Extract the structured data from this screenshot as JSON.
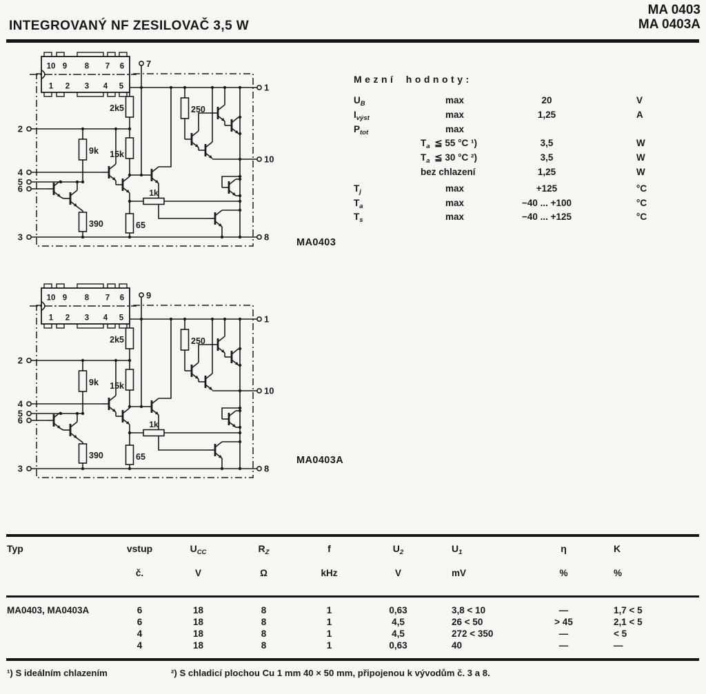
{
  "header": {
    "title": "INTEGROVANÝ NF ZESILOVAČ 3,5 W",
    "part_line1": "MA 0403",
    "part_line2": "MA 0403A"
  },
  "colors": {
    "ink": "#1a1a1a",
    "paper": "#f6f6f3"
  },
  "schematics": [
    {
      "caption": "MA0403",
      "top_pin": "7",
      "left_pins": [
        "2",
        "4",
        "5",
        "6",
        "3"
      ],
      "right_pins": [
        "1",
        "10",
        "8"
      ],
      "resistors": {
        "r2k5": "2k5",
        "r15k": "15k",
        "r9k": "9k",
        "r390": "390",
        "r65": "65",
        "r1k": "1k",
        "r250": "250"
      },
      "package_top_pins": [
        "10",
        "9",
        "8",
        "7",
        "6"
      ],
      "package_bottom_pins": [
        "1",
        "2",
        "3",
        "4",
        "5"
      ]
    },
    {
      "caption": "MA0403A",
      "top_pin": "9",
      "left_pins": [
        "2",
        "4",
        "5",
        "6",
        "3"
      ],
      "right_pins": [
        "1",
        "10",
        "8"
      ],
      "resistors": {
        "r2k5": "2k5",
        "r15k": "15k",
        "r9k": "9k",
        "r390": "390",
        "r65": "65",
        "r1k": "1k",
        "r250": "250"
      },
      "package_top_pins": [
        "10",
        "9",
        "8",
        "7",
        "6"
      ],
      "package_bottom_pins": [
        "1",
        "2",
        "3",
        "4",
        "5"
      ]
    }
  ],
  "limits": {
    "heading": "Mezní hodnoty:",
    "rows": [
      {
        "sym": "U",
        "sub": "B",
        "cond": "max",
        "cond_indent": true,
        "value": "20",
        "unit": "V"
      },
      {
        "sym": "I",
        "sub": "výst",
        "cond": "max",
        "cond_indent": true,
        "value": "1,25",
        "unit": "A"
      },
      {
        "sym": "P",
        "sub": "tot",
        "cond": "max",
        "cond_indent": true,
        "value": "",
        "unit": ""
      },
      {
        "sym": "",
        "sub": "",
        "cond_sym": "T",
        "cond_sub": "a",
        "cond": "≦ 55 °C ¹)",
        "value": "3,5",
        "unit": "W"
      },
      {
        "sym": "",
        "sub": "",
        "cond_sym": "T",
        "cond_sub": "a",
        "cond": "≦ 30 °C ²)",
        "value": "3,5",
        "unit": "W"
      },
      {
        "sym": "",
        "sub": "",
        "cond": "bez chlazení",
        "value": "1,25",
        "unit": "W"
      },
      {
        "sym": "T",
        "sub": "j",
        "cond": "max",
        "cond_indent": true,
        "value": "+125",
        "unit": "°C",
        "gap": true
      },
      {
        "sym": "T",
        "sub": "a",
        "cond": "max",
        "cond_indent": true,
        "value": "−40 ... +100",
        "unit": "°C"
      },
      {
        "sym": "T",
        "sub": "s",
        "cond": "max",
        "cond_indent": true,
        "value": "−40 ... +125",
        "unit": "°C"
      }
    ]
  },
  "table": {
    "headers": [
      {
        "m": "Typ",
        "ms": "",
        "u": ""
      },
      {
        "m": "vstup",
        "ms": "",
        "u": "č."
      },
      {
        "m": "U",
        "ms": "CC",
        "u": "V"
      },
      {
        "m": "R",
        "ms": "Z",
        "u": "Ω"
      },
      {
        "m": "f",
        "ms": "",
        "u": "kHz"
      },
      {
        "m": "U",
        "ms": "2",
        "u": "V"
      },
      {
        "m": "U",
        "ms": "1",
        "u": "mV"
      },
      {
        "m": "η",
        "ms": "",
        "u": "%"
      },
      {
        "m": "K",
        "ms": "",
        "u": "%"
      }
    ],
    "rows": [
      [
        "MA0403, MA0403A",
        "6",
        "18",
        "8",
        "1",
        "0,63",
        "3,8 < 10",
        "—",
        "1,7 < 5"
      ],
      [
        "",
        "6",
        "18",
        "8",
        "1",
        "4,5",
        "26 < 50",
        "> 45",
        "2,1 < 5"
      ],
      [
        "",
        "4",
        "18",
        "8",
        "1",
        "4,5",
        "272 < 350",
        "—",
        "< 5"
      ],
      [
        "",
        "4",
        "18",
        "8",
        "1",
        "0,63",
        "40",
        "—",
        "—"
      ]
    ]
  },
  "footnotes": {
    "f1": "¹) S ideálním chlazením",
    "f2": "²) S chladicí plochou Cu 1 mm 40 × 50 mm, připojenou k vývodům č. 3 a 8."
  }
}
